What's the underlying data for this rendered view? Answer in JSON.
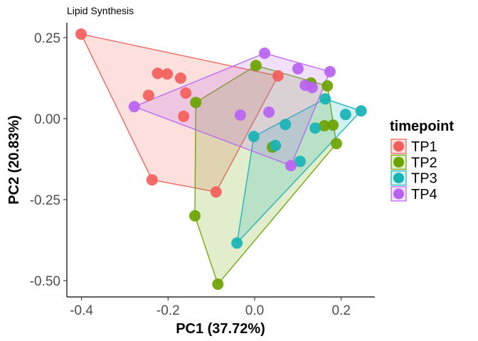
{
  "chart_data": {
    "type": "scatter",
    "title": "Lipid Synthesis",
    "xlabel": "PC1 (37.72%)",
    "ylabel": "PC2 (20.83%)",
    "xlim": [
      -0.43,
      0.28
    ],
    "ylim": [
      -0.55,
      0.3
    ],
    "x_ticks": [
      -0.4,
      -0.2,
      0.0,
      0.2
    ],
    "x_tick_labels": [
      "-0.4",
      "-0.2",
      "0.0",
      "0.2"
    ],
    "y_ticks": [
      0.25,
      0.0,
      -0.25,
      -0.5
    ],
    "y_tick_labels": [
      "0.25",
      "0.00",
      "-0.25",
      "-0.50"
    ],
    "grid": false,
    "hulls": true,
    "legend": {
      "title": "timepoint",
      "placement": "right"
    },
    "series": [
      {
        "name": "TP1",
        "color": "#F35E5A",
        "points": [
          [
            -0.401,
            0.261
          ],
          [
            -0.224,
            0.14
          ],
          [
            -0.202,
            0.138
          ],
          [
            -0.171,
            0.125
          ],
          [
            -0.245,
            0.072
          ],
          [
            -0.159,
            0.079
          ],
          [
            -0.164,
            0.007
          ],
          [
            0.054,
            0.132
          ],
          [
            -0.237,
            -0.189
          ],
          [
            -0.089,
            -0.226
          ]
        ]
      },
      {
        "name": "TP2",
        "color": "#6BA300",
        "points": [
          [
            -0.136,
            0.05
          ],
          [
            0.003,
            0.164
          ],
          [
            0.13,
            0.11
          ],
          [
            0.168,
            0.101
          ],
          [
            0.161,
            -0.022
          ],
          [
            0.181,
            -0.02
          ],
          [
            0.189,
            -0.077
          ],
          [
            0.041,
            -0.088
          ],
          [
            -0.138,
            -0.3
          ],
          [
            -0.085,
            -0.511
          ]
        ]
      },
      {
        "name": "TP3",
        "color": "#17B3B6",
        "points": [
          [
            -0.002,
            -0.055
          ],
          [
            0.071,
            -0.018
          ],
          [
            0.048,
            -0.083
          ],
          [
            0.105,
            -0.132
          ],
          [
            0.14,
            -0.029
          ],
          [
            0.163,
            0.061
          ],
          [
            0.21,
            0.013
          ],
          [
            0.246,
            0.024
          ],
          [
            -0.041,
            -0.384
          ]
        ]
      },
      {
        "name": "TP4",
        "color": "#B862F2",
        "points": [
          [
            0.023,
            0.202
          ],
          [
            0.1,
            0.154
          ],
          [
            0.174,
            0.145
          ],
          [
            0.117,
            0.103
          ],
          [
            0.133,
            0.096
          ],
          [
            -0.278,
            0.037
          ],
          [
            -0.033,
            0.011
          ],
          [
            0.033,
            0.02
          ],
          [
            0.084,
            -0.145
          ]
        ]
      }
    ]
  }
}
